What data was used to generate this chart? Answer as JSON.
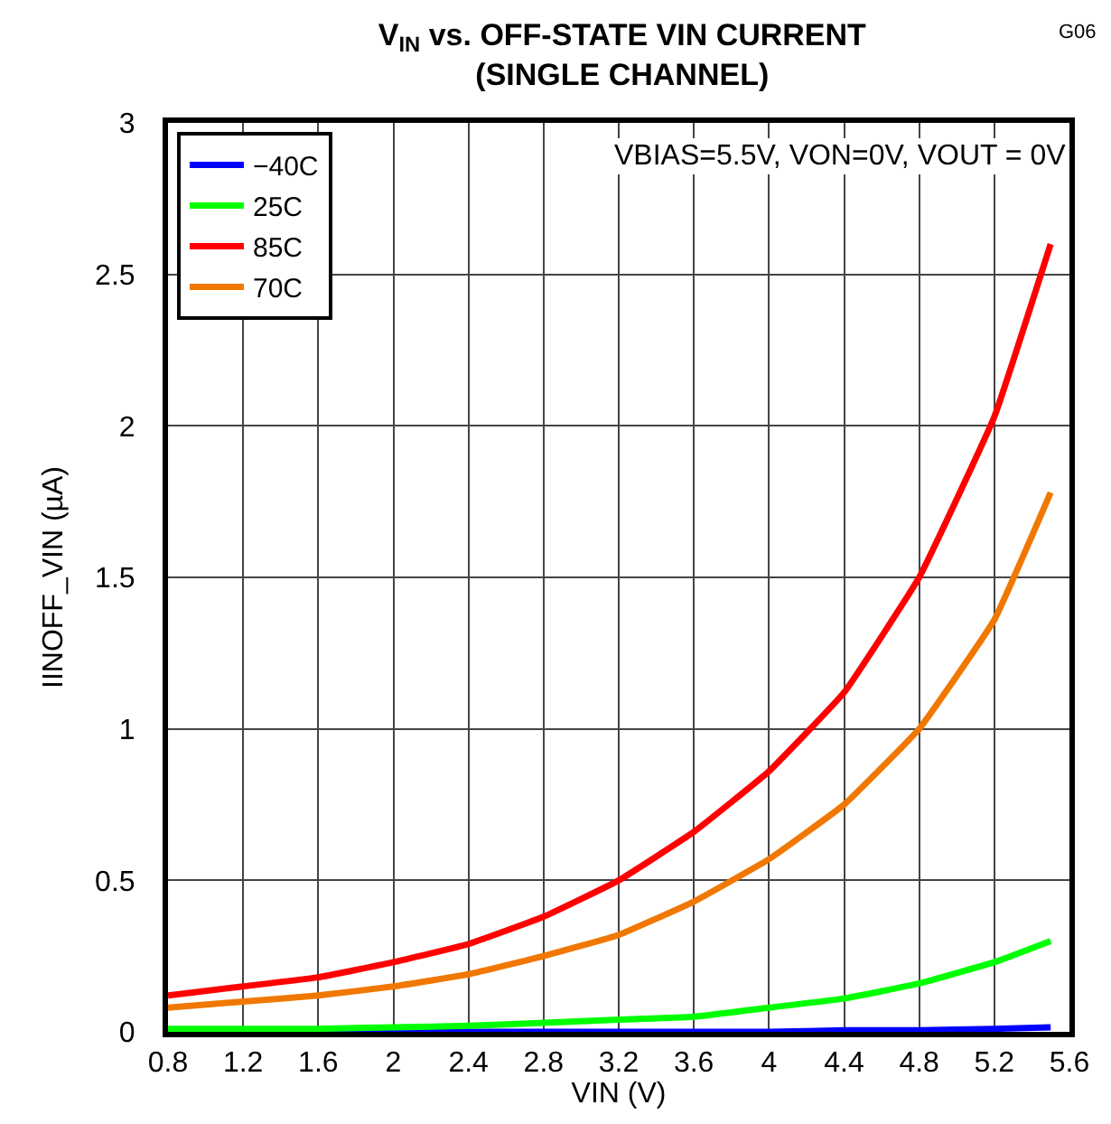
{
  "chart_data": {
    "type": "line",
    "title": "V$_{IN}$ vs. OFF-STATE VIN CURRENT\n(SINGLE CHANNEL)",
    "xlabel": "VIN (V)",
    "ylabel": "IINOFF_VIN (µA)",
    "annotations": [
      "VBIAS=5.5V, VON=0V, VOUT = 0V",
      "G06"
    ],
    "x": [
      0.8,
      1.2,
      1.6,
      2.0,
      2.4,
      2.8,
      3.2,
      3.6,
      4.0,
      4.4,
      4.8,
      5.2,
      5.5
    ],
    "series": [
      {
        "name": "−40C",
        "color": "#0000ff",
        "values": [
          0.0,
          0.0,
          0.0,
          0.0,
          0.0,
          0.0,
          0.0,
          0.0,
          0.0,
          0.005,
          0.005,
          0.01,
          0.015
        ]
      },
      {
        "name": "25C",
        "color": "#00ff00",
        "values": [
          0.01,
          0.01,
          0.01,
          0.015,
          0.02,
          0.03,
          0.04,
          0.05,
          0.08,
          0.11,
          0.16,
          0.23,
          0.3
        ]
      },
      {
        "name": "85C",
        "color": "#ff0000",
        "values": [
          0.12,
          0.15,
          0.18,
          0.23,
          0.29,
          0.38,
          0.5,
          0.66,
          0.86,
          1.12,
          1.5,
          2.03,
          2.6
        ]
      },
      {
        "name": "70C",
        "color": "#f07800",
        "values": [
          0.08,
          0.1,
          0.12,
          0.15,
          0.19,
          0.25,
          0.32,
          0.43,
          0.57,
          0.75,
          1.0,
          1.36,
          1.78
        ]
      }
    ],
    "xlim": [
      0.8,
      5.6
    ],
    "xticks": [
      0.8,
      1.2,
      1.6,
      2,
      2.4,
      2.8,
      3.2,
      3.6,
      4,
      4.4,
      4.8,
      5.2,
      5.6
    ],
    "ylim": [
      0,
      3
    ],
    "yticks": [
      0,
      0.5,
      1,
      1.5,
      2,
      2.5,
      3
    ],
    "grid": true,
    "legend": "top left",
    "line_style": "solid",
    "marker": "none"
  }
}
